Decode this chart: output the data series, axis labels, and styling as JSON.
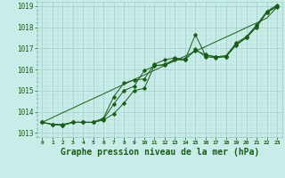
{
  "xlabel": "Graphe pression niveau de la mer (hPa)",
  "xlim": [
    -0.5,
    23.5
  ],
  "ylim": [
    1012.8,
    1019.2
  ],
  "xticks": [
    0,
    1,
    2,
    3,
    4,
    5,
    6,
    7,
    8,
    9,
    10,
    11,
    12,
    13,
    14,
    15,
    16,
    17,
    18,
    19,
    20,
    21,
    22,
    23
  ],
  "yticks": [
    1013,
    1014,
    1015,
    1016,
    1017,
    1018,
    1019
  ],
  "bg_color": "#c8ede8",
  "line_color": "#1a5c1a",
  "grid_major_color": "#a0ccc8",
  "grid_minor_color": "#b8ddd8",
  "series1": [
    1013.5,
    1013.4,
    1013.4,
    1013.5,
    1013.5,
    1013.5,
    1013.6,
    1013.9,
    1014.4,
    1015.0,
    1015.1,
    1016.2,
    1016.2,
    1016.5,
    1016.5,
    1016.9,
    1016.7,
    1016.6,
    1016.6,
    1017.2,
    1017.5,
    1018.0,
    1018.7,
    1019.0
  ],
  "series2": [
    1013.5,
    1013.4,
    1013.35,
    1013.5,
    1013.5,
    1013.5,
    1013.65,
    1014.35,
    1015.0,
    1015.2,
    1015.95,
    1016.15,
    1016.25,
    1016.45,
    1016.45,
    1016.95,
    1016.6,
    1016.55,
    1016.6,
    1017.15,
    1017.5,
    1018.05,
    1018.7,
    1018.95
  ],
  "series3": [
    1013.5,
    1013.4,
    1013.35,
    1013.5,
    1013.5,
    1013.5,
    1013.7,
    1014.7,
    1015.35,
    1015.5,
    1015.55,
    1016.25,
    1016.45,
    1016.55,
    1016.45,
    1017.65,
    1016.65,
    1016.6,
    1016.65,
    1017.25,
    1017.55,
    1018.1,
    1018.75,
    1019.05
  ],
  "series_straight": [
    1013.5,
    1013.72,
    1013.95,
    1014.17,
    1014.4,
    1014.62,
    1014.84,
    1015.07,
    1015.29,
    1015.52,
    1015.74,
    1015.96,
    1016.19,
    1016.41,
    1016.63,
    1016.86,
    1017.08,
    1017.31,
    1017.53,
    1017.75,
    1017.98,
    1018.2,
    1018.43,
    1018.95
  ],
  "tick_fontsize": 6,
  "xlabel_fontsize": 7,
  "ylabel_fontsize": 6
}
